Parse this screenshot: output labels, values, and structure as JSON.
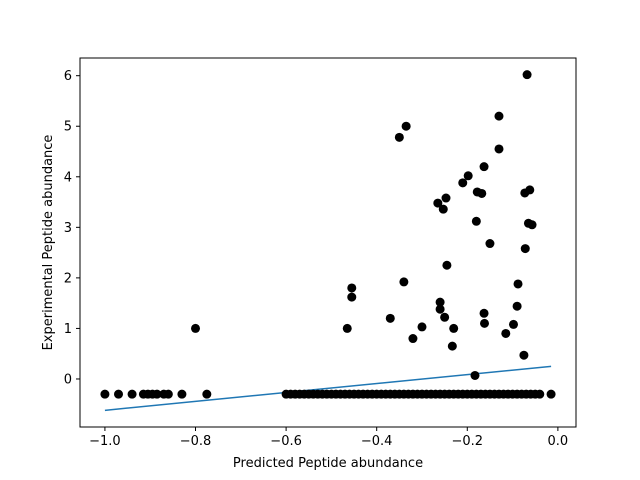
{
  "chart_data": {
    "type": "scatter",
    "title": "",
    "xlabel": "Predicted Peptide abundance",
    "ylabel": "Experimental Peptide abundance",
    "xlim": [
      -1.055,
      0.04
    ],
    "ylim": [
      -0.95,
      6.35
    ],
    "xticks": [
      -1.0,
      -0.8,
      -0.6,
      -0.4,
      -0.2,
      0.0
    ],
    "xtick_labels": [
      "−1.0",
      "−0.8",
      "−0.6",
      "−0.4",
      "−0.2",
      "0.0"
    ],
    "yticks": [
      0,
      1,
      2,
      3,
      4,
      5,
      6
    ],
    "ytick_labels": [
      "0",
      "1",
      "2",
      "3",
      "4",
      "5",
      "6"
    ],
    "grid": false,
    "colors": {
      "points": "#000000",
      "fit_line": "#1f77b4"
    },
    "fit_line": {
      "x": [
        -1.0,
        -0.015
      ],
      "y": [
        -0.62,
        0.25
      ]
    },
    "points": [
      [
        -1.0,
        -0.3
      ],
      [
        -0.97,
        -0.3
      ],
      [
        -0.94,
        -0.3
      ],
      [
        -0.915,
        -0.3
      ],
      [
        -0.905,
        -0.3
      ],
      [
        -0.895,
        -0.3
      ],
      [
        -0.885,
        -0.3
      ],
      [
        -0.87,
        -0.3
      ],
      [
        -0.86,
        -0.3
      ],
      [
        -0.83,
        -0.3
      ],
      [
        -0.775,
        -0.3
      ],
      [
        -0.8,
        1.0
      ],
      [
        -0.6,
        -0.3
      ],
      [
        -0.59,
        -0.3
      ],
      [
        -0.58,
        -0.3
      ],
      [
        -0.57,
        -0.3
      ],
      [
        -0.56,
        -0.3
      ],
      [
        -0.55,
        -0.3
      ],
      [
        -0.54,
        -0.3
      ],
      [
        -0.53,
        -0.3
      ],
      [
        -0.52,
        -0.3
      ],
      [
        -0.51,
        -0.3
      ],
      [
        -0.5,
        -0.3
      ],
      [
        -0.49,
        -0.3
      ],
      [
        -0.48,
        -0.3
      ],
      [
        -0.47,
        -0.3
      ],
      [
        -0.46,
        -0.3
      ],
      [
        -0.45,
        -0.3
      ],
      [
        -0.44,
        -0.3
      ],
      [
        -0.43,
        -0.3
      ],
      [
        -0.42,
        -0.3
      ],
      [
        -0.41,
        -0.3
      ],
      [
        -0.4,
        -0.3
      ],
      [
        -0.39,
        -0.3
      ],
      [
        -0.38,
        -0.3
      ],
      [
        -0.37,
        -0.3
      ],
      [
        -0.36,
        -0.3
      ],
      [
        -0.35,
        -0.3
      ],
      [
        -0.34,
        -0.3
      ],
      [
        -0.33,
        -0.3
      ],
      [
        -0.32,
        -0.3
      ],
      [
        -0.31,
        -0.3
      ],
      [
        -0.3,
        -0.3
      ],
      [
        -0.29,
        -0.3
      ],
      [
        -0.28,
        -0.3
      ],
      [
        -0.27,
        -0.3
      ],
      [
        -0.26,
        -0.3
      ],
      [
        -0.25,
        -0.3
      ],
      [
        -0.24,
        -0.3
      ],
      [
        -0.23,
        -0.3
      ],
      [
        -0.22,
        -0.3
      ],
      [
        -0.21,
        -0.3
      ],
      [
        -0.2,
        -0.3
      ],
      [
        -0.19,
        -0.3
      ],
      [
        -0.18,
        -0.3
      ],
      [
        -0.17,
        -0.3
      ],
      [
        -0.16,
        -0.3
      ],
      [
        -0.15,
        -0.3
      ],
      [
        -0.14,
        -0.3
      ],
      [
        -0.13,
        -0.3
      ],
      [
        -0.12,
        -0.3
      ],
      [
        -0.11,
        -0.3
      ],
      [
        -0.1,
        -0.3
      ],
      [
        -0.09,
        -0.3
      ],
      [
        -0.08,
        -0.3
      ],
      [
        -0.07,
        -0.3
      ],
      [
        -0.06,
        -0.3
      ],
      [
        -0.05,
        -0.3
      ],
      [
        -0.04,
        -0.3
      ],
      [
        -0.015,
        -0.3
      ],
      [
        -0.465,
        1.0
      ],
      [
        -0.455,
        1.8
      ],
      [
        -0.455,
        1.62
      ],
      [
        -0.37,
        1.2
      ],
      [
        -0.35,
        4.78
      ],
      [
        -0.34,
        1.92
      ],
      [
        -0.335,
        5.0
      ],
      [
        -0.32,
        0.8
      ],
      [
        -0.3,
        1.03
      ],
      [
        -0.265,
        3.48
      ],
      [
        -0.26,
        1.52
      ],
      [
        -0.26,
        1.38
      ],
      [
        -0.253,
        3.36
      ],
      [
        -0.25,
        1.22
      ],
      [
        -0.247,
        3.58
      ],
      [
        -0.245,
        2.25
      ],
      [
        -0.233,
        0.65
      ],
      [
        -0.23,
        1.0
      ],
      [
        -0.21,
        3.88
      ],
      [
        -0.198,
        4.02
      ],
      [
        -0.183,
        0.07
      ],
      [
        -0.18,
        3.12
      ],
      [
        -0.178,
        3.7
      ],
      [
        -0.168,
        3.67
      ],
      [
        -0.163,
        4.2
      ],
      [
        -0.163,
        1.3
      ],
      [
        -0.162,
        1.1
      ],
      [
        -0.15,
        2.68
      ],
      [
        -0.13,
        5.2
      ],
      [
        -0.13,
        4.55
      ],
      [
        -0.115,
        0.9
      ],
      [
        -0.098,
        1.08
      ],
      [
        -0.09,
        1.44
      ],
      [
        -0.088,
        1.88
      ],
      [
        -0.075,
        0.47
      ],
      [
        -0.073,
        3.68
      ],
      [
        -0.072,
        2.58
      ],
      [
        -0.068,
        6.02
      ],
      [
        -0.065,
        3.08
      ],
      [
        -0.062,
        3.74
      ],
      [
        -0.057,
        3.05
      ]
    ]
  }
}
